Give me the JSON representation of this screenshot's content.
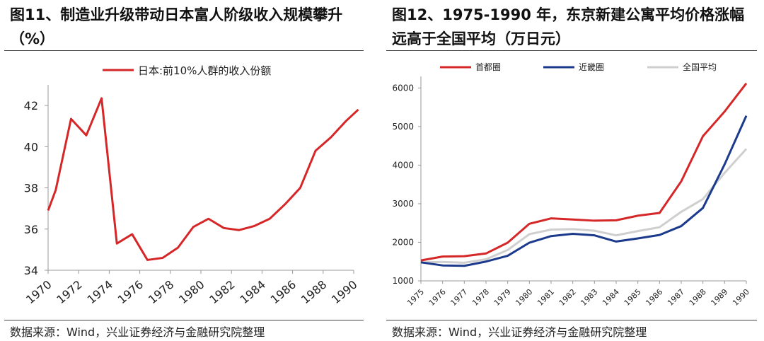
{
  "left": {
    "title": "图11、制造业升级带动日本富人阶级收入规模攀升（%）",
    "source": "数据来源：Wind，兴业证券经济与金融研究院整理"
  },
  "right": {
    "title": "图12、1975-1990 年，东京新建公寓平均价格涨幅远高于全国平均（万日元）",
    "source": "数据来源：Wind，兴业证券经济与金融研究院整理"
  },
  "colors": {
    "red": "#d62728",
    "navy": "#1b3a8c",
    "gray": "#cfcfcf"
  },
  "chart_data": [
    {
      "type": "line",
      "legend_position": "top",
      "x": [
        1970,
        1971,
        1972,
        1973,
        1974,
        1975,
        1976,
        1977,
        1978,
        1979,
        1980,
        1981,
        1982,
        1983,
        1984,
        1985,
        1986,
        1987,
        1988,
        1989,
        1990
      ],
      "x_ticks": [
        "1970",
        "1972",
        "1974",
        "1976",
        "1978",
        "1980",
        "1982",
        "1984",
        "1986",
        "1988",
        "1990"
      ],
      "xlim": [
        1970,
        1990
      ],
      "y_ticks": [
        "34",
        "36",
        "38",
        "40",
        "42"
      ],
      "ylim": [
        34,
        43
      ],
      "series": [
        {
          "name": "日本:前10%人群的收入份额",
          "color": "#d62728",
          "values": [
            36.9,
            37.9,
            41.35,
            40.55,
            42.35,
            35.3,
            35.75,
            34.5,
            34.6,
            35.1,
            36.1,
            36.5,
            36.05,
            35.95,
            36.15,
            36.5,
            37.2,
            38.0,
            39.8,
            40.45,
            41.25,
            41.8
          ],
          "x": [
            1970,
            1970.5,
            1971.5,
            1972.5,
            1973.5,
            1974.5,
            1975.5,
            1976.5,
            1977.5,
            1978.5,
            1979.5,
            1980.5,
            1981.5,
            1982.5,
            1983.5,
            1984.5,
            1985.5,
            1986.5,
            1987.5,
            1988.5,
            1989.5,
            1990.3
          ]
        }
      ]
    },
    {
      "type": "line",
      "legend_position": "top",
      "x": [
        "1975",
        "1976",
        "1977",
        "1978",
        "1979",
        "1980",
        "1981",
        "1982",
        "1983",
        "1984",
        "1985",
        "1986",
        "1987",
        "1988",
        "1989",
        "1990"
      ],
      "y_ticks": [
        "1000",
        "2000",
        "3000",
        "4000",
        "5000",
        "6000"
      ],
      "ylim": [
        1000,
        6300
      ],
      "series": [
        {
          "name": "首都圈",
          "color": "#d62728",
          "values": [
            1530,
            1630,
            1640,
            1710,
            1990,
            2480,
            2620,
            2590,
            2560,
            2570,
            2690,
            2760,
            3580,
            4750,
            5390,
            6120
          ]
        },
        {
          "name": "近畿圈",
          "color": "#1b3a8c",
          "values": [
            1480,
            1400,
            1390,
            1500,
            1650,
            1990,
            2160,
            2220,
            2180,
            2020,
            2100,
            2190,
            2420,
            2890,
            4020,
            5280
          ]
        },
        {
          "name": "全国平均",
          "color": "#cfcfcf",
          "values": [
            1480,
            1490,
            1470,
            1560,
            1800,
            2210,
            2330,
            2340,
            2300,
            2180,
            2290,
            2390,
            2790,
            3120,
            3800,
            4420
          ]
        }
      ]
    }
  ]
}
